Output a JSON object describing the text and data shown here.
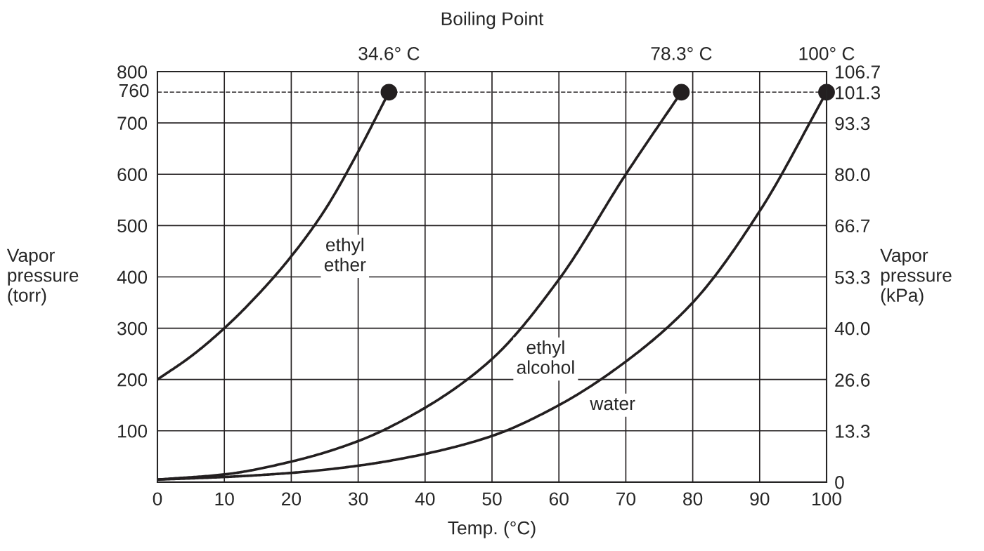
{
  "chart_data": {
    "type": "line",
    "xlabel": "Temp. (°C)",
    "ylabel": "Vapor\npressure\n(torr)",
    "y2label": "Vapor\npressure\n(kPa)",
    "x2label": "Boiling Point",
    "xlim": [
      0,
      100
    ],
    "xticks": [
      0,
      10,
      20,
      30,
      40,
      50,
      60,
      70,
      80,
      90,
      100
    ],
    "ylim": [
      0,
      800
    ],
    "yticks": [
      100,
      200,
      300,
      400,
      500,
      600,
      700,
      800
    ],
    "y2lim": [
      0,
      106.7
    ],
    "y2ticks": [
      0,
      13.3,
      26.6,
      {
        "value": 40,
        "label": "40.0"
      },
      53.3,
      66.7,
      {
        "value": 80,
        "label": "80.0"
      },
      93.3,
      101.3,
      106.7
    ],
    "x2lim": [
      0,
      100
    ],
    "x2ticks": [
      {
        "value": 34.6,
        "label": "34.6° C"
      },
      {
        "value": 78.3,
        "label": "78.3° C"
      },
      {
        "value": 100,
        "label": "100° C"
      }
    ],
    "grid": true,
    "line_style": "solid",
    "series": [
      {
        "name": "ethyl\nether",
        "color": "#231f20",
        "x": [
          0,
          5,
          10,
          15,
          20,
          25,
          30,
          34.6
        ],
        "values": [
          200,
          245,
          300,
          365,
          440,
          530,
          644,
          760
        ]
      },
      {
        "name": "ethyl\nalcohol",
        "color": "#231f20",
        "x": [
          0,
          10,
          20,
          30,
          40,
          50,
          60,
          70,
          78.3
        ],
        "values": [
          5,
          15,
          40,
          80,
          145,
          240,
          395,
          600,
          760
        ]
      },
      {
        "name": "water",
        "color": "#231f20",
        "x": [
          0,
          10,
          20,
          30,
          40,
          50,
          60,
          70,
          80,
          90,
          100
        ],
        "values": [
          5,
          10,
          18,
          32,
          55,
          90,
          150,
          235,
          350,
          528,
          760
        ]
      },
      {
        "type": "scatter",
        "color": "#231f20",
        "marker": "circle",
        "x": [
          34.6,
          78.3,
          100
        ],
        "values": [
          760,
          760,
          760
        ]
      }
    ],
    "ref_lines": [
      {
        "axis": "y",
        "value": 760,
        "label": "760",
        "line_style": "dashed",
        "color": "#231f20"
      }
    ]
  }
}
